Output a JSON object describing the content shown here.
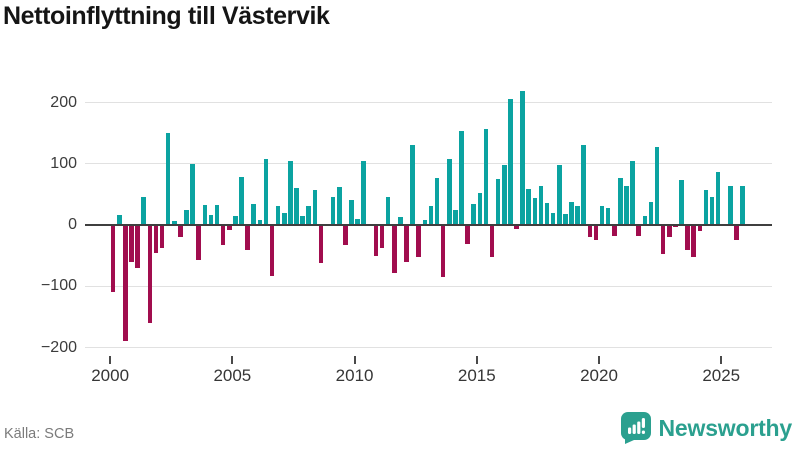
{
  "title": "Nettoinflyttning till Västervik",
  "source": {
    "label": "Källa: SCB"
  },
  "branding": {
    "name": "Newsworthy",
    "icon": "newsworthy-speech-bubble-bar-chart-icon"
  },
  "colors": {
    "positive_bar": "#0ba3a1",
    "negative_bar": "#a10d4e",
    "zero_axis": "#3f3f3f",
    "gridline": "#e1e1e1",
    "title_text": "#151515",
    "tick_text": "#3c3c3c",
    "source_text": "#7b7b7b",
    "brand_teal": "#2ba08f",
    "background": "#ffffff"
  },
  "chart_data": {
    "type": "bar",
    "title": "Nettoinflyttning till Västervik",
    "xlabel": "",
    "ylabel": "",
    "frequency": "quarterly",
    "start": "2000 Q1",
    "end": "2025 Q4",
    "x_tick_labels": [
      "2000",
      "2005",
      "2010",
      "2015",
      "2020",
      "2025"
    ],
    "y_ticks": [
      200,
      100,
      0,
      -100,
      -200
    ],
    "ylim": [
      -220,
      235
    ],
    "grid": "horizontal",
    "legend": "none",
    "series": [
      {
        "name": "Nettoinflyttning",
        "values": [
          -110,
          17,
          -190,
          -60,
          -70,
          46,
          -160,
          -46,
          -38,
          150,
          7,
          -20,
          25,
          100,
          -57,
          33,
          17,
          32,
          -33,
          -8,
          15,
          79,
          -40,
          34,
          8,
          107,
          -84,
          31,
          20,
          104,
          60,
          15,
          31,
          57,
          -62,
          0,
          46,
          62,
          -33,
          41,
          10,
          104,
          0,
          -51,
          -38,
          45,
          -79,
          13,
          -60,
          130,
          -53,
          8,
          31,
          77,
          -85,
          107,
          24,
          153,
          -31,
          34,
          53,
          157,
          -53,
          75,
          98,
          205,
          -7,
          218,
          58,
          44,
          63,
          36,
          20,
          98,
          18,
          37,
          31,
          131,
          -19,
          -24,
          31,
          27,
          -18,
          77,
          64,
          104,
          -18,
          15,
          37,
          127,
          -48,
          -20,
          -4,
          73,
          -40,
          -53,
          -10,
          57,
          45,
          86,
          0,
          63,
          -24,
          64
        ]
      }
    ]
  }
}
